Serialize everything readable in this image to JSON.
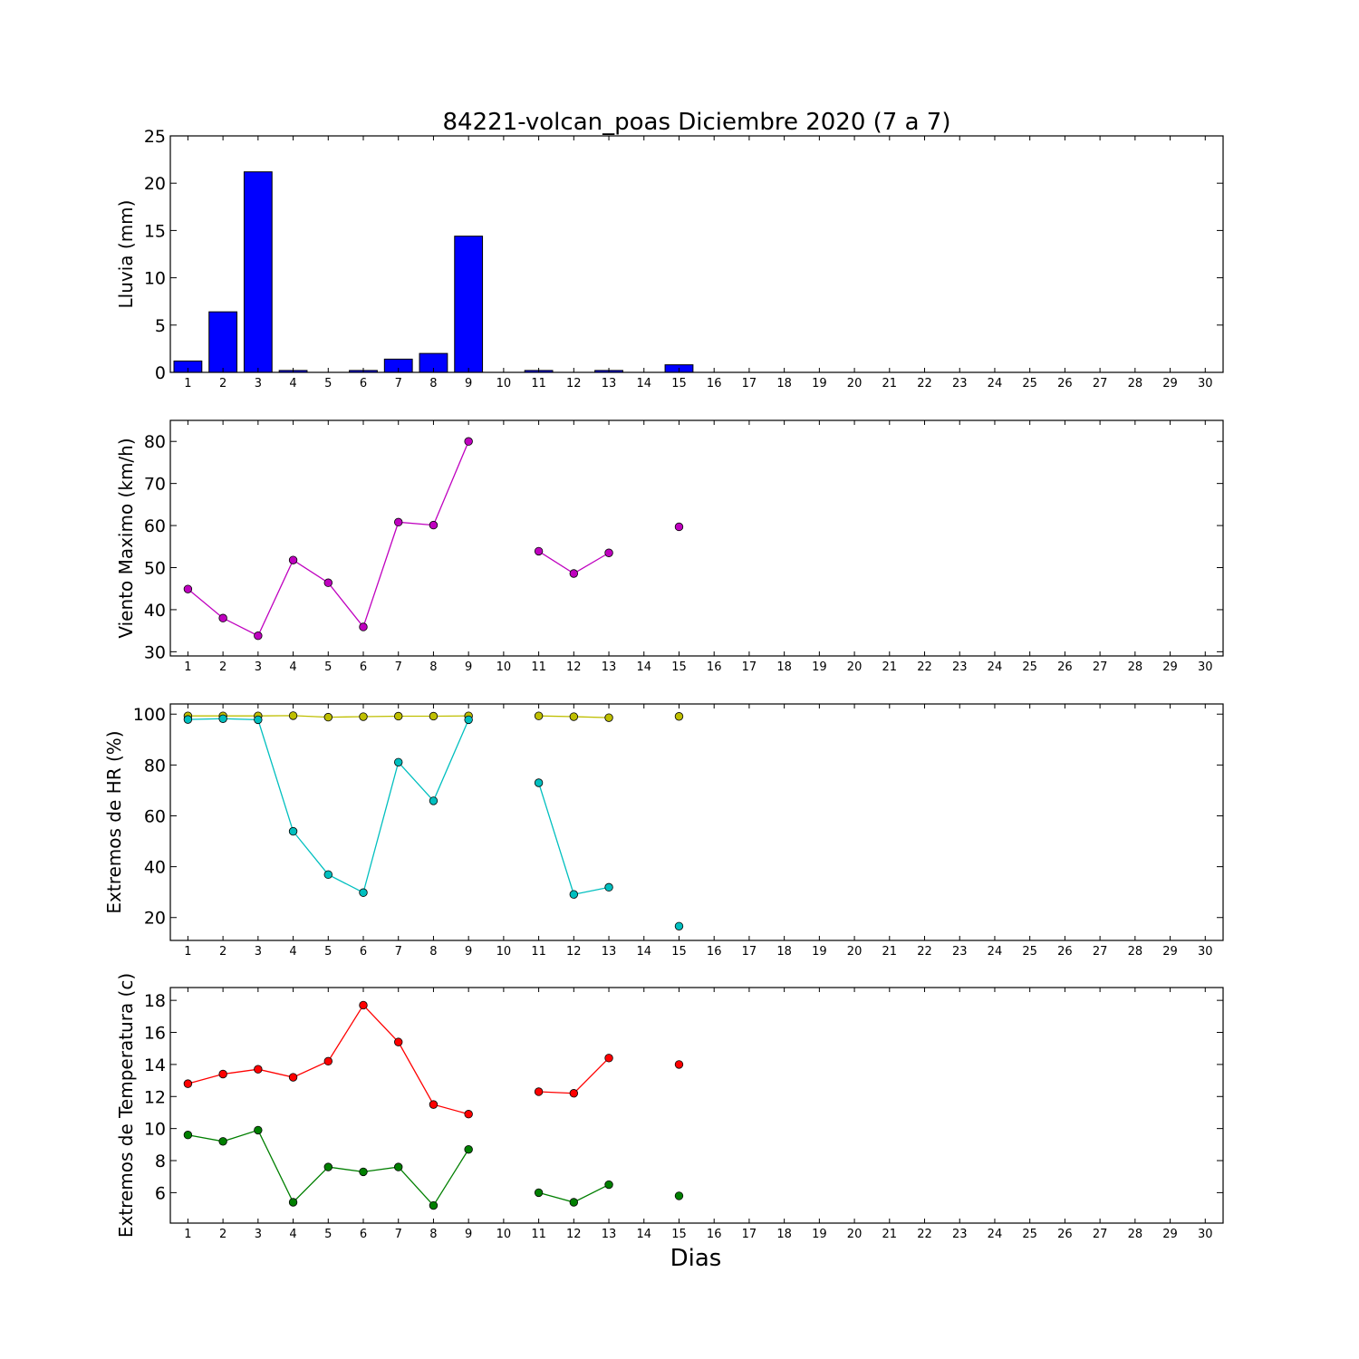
{
  "title": "84221-volcan_poas Diciembre 2020  (7 a 7)",
  "xlabel": "Dias",
  "days": [
    1,
    2,
    3,
    4,
    5,
    6,
    7,
    8,
    9,
    10,
    11,
    12,
    13,
    14,
    15,
    16,
    17,
    18,
    19,
    20,
    21,
    22,
    23,
    24,
    25,
    26,
    27,
    28,
    29,
    30
  ],
  "chart_data": [
    {
      "type": "bar",
      "ylabel": "Lluvia (mm)",
      "ylim": [
        0,
        25
      ],
      "yticks": [
        0,
        5,
        10,
        15,
        20,
        25
      ],
      "series": [
        {
          "color": "#0000ff",
          "values": [
            1.2,
            6.4,
            21.2,
            0.2,
            0,
            0.2,
            1.4,
            2.0,
            14.4,
            0,
            0.2,
            0,
            0.2,
            0,
            0.8,
            0,
            0,
            0,
            0,
            0,
            0,
            0,
            0,
            0,
            0,
            0,
            0,
            0,
            0,
            0
          ]
        }
      ]
    },
    {
      "type": "line",
      "ylabel": "Viento Maximo (km/h)",
      "ylim": [
        29,
        85
      ],
      "yticks": [
        30,
        40,
        50,
        60,
        70,
        80
      ],
      "series": [
        {
          "color": "#bf00bf",
          "values": [
            44.9,
            38.0,
            33.8,
            51.8,
            46.4,
            35.9,
            60.8,
            60.1,
            80.0,
            null,
            53.9,
            48.6,
            53.5,
            null,
            59.7,
            null,
            null,
            null,
            null,
            null,
            null,
            null,
            null,
            null,
            null,
            null,
            null,
            null,
            null,
            null
          ]
        }
      ]
    },
    {
      "type": "line",
      "ylabel": "Extremos de HR (%)",
      "ylim": [
        11,
        104
      ],
      "yticks": [
        20,
        40,
        60,
        80,
        100
      ],
      "series": [
        {
          "color": "#bfbf00",
          "values": [
            99.3,
            99.3,
            99.3,
            99.4,
            98.8,
            99.0,
            99.2,
            99.2,
            99.3,
            null,
            99.3,
            99.0,
            98.6,
            null,
            99.1,
            null,
            null,
            null,
            null,
            null,
            null,
            null,
            null,
            null,
            null,
            null,
            null,
            null,
            null,
            null
          ]
        },
        {
          "color": "#00bfbf",
          "values": [
            97.9,
            98.2,
            97.8,
            53.9,
            36.9,
            29.8,
            81.1,
            65.9,
            97.8,
            null,
            73.0,
            29.1,
            31.9,
            null,
            16.6,
            null,
            null,
            null,
            null,
            null,
            null,
            null,
            null,
            null,
            null,
            null,
            null,
            null,
            null,
            null
          ]
        }
      ]
    },
    {
      "type": "line",
      "ylabel": "Extremos de Temperatura (c)",
      "ylim": [
        4.1,
        18.8
      ],
      "yticks": [
        6,
        8,
        10,
        12,
        14,
        16,
        18
      ],
      "series": [
        {
          "color": "#ff0000",
          "values": [
            12.8,
            13.4,
            13.7,
            13.2,
            14.2,
            17.7,
            15.4,
            11.5,
            10.9,
            null,
            12.3,
            12.2,
            14.4,
            null,
            14.0,
            null,
            null,
            null,
            null,
            null,
            null,
            null,
            null,
            null,
            null,
            null,
            null,
            null,
            null,
            null
          ]
        },
        {
          "color": "#007f00",
          "values": [
            9.6,
            9.2,
            9.9,
            5.4,
            7.6,
            7.3,
            7.6,
            5.2,
            8.7,
            null,
            6.0,
            5.4,
            6.5,
            null,
            5.8,
            null,
            null,
            null,
            null,
            null,
            null,
            null,
            null,
            null,
            null,
            null,
            null,
            null,
            null,
            null
          ]
        }
      ]
    }
  ]
}
